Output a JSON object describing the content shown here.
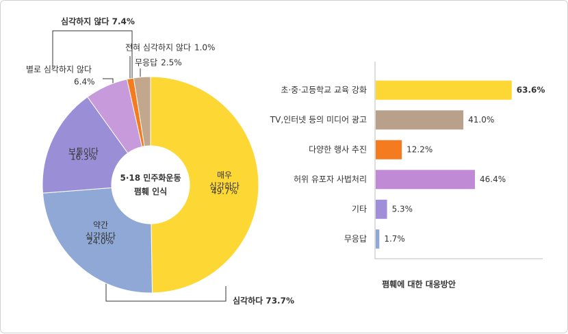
{
  "chart_data": [
    {
      "type": "pie",
      "title": "5·18 민주화운동\n폄훼 인식",
      "categories": [
        "매우\n심각하다",
        "약간\n심각하다",
        "보통이다",
        "별로 심각하지 않다",
        "전혀 심각하지 않다",
        "무응답"
      ],
      "values": [
        49.7,
        24.0,
        16.3,
        6.4,
        1.0,
        2.5
      ],
      "value_labels": [
        "49.7%",
        "24.0%",
        "16.3%",
        "6.4%",
        "1.0%",
        "2.5%"
      ],
      "colors": [
        "#fdd835",
        "#8fa8d6",
        "#9a8fd6",
        "#c79bdb",
        "#f47b20",
        "#c2a78c"
      ],
      "annotations": [
        "심각하지 않다 7.4%",
        "심각하다 73.7%"
      ]
    },
    {
      "type": "hbar",
      "title": "폄훼에 대한 대응방안",
      "categories": [
        "초·중·고등학교 교육 강화",
        "TV,인터넷 등의 미디어 광고",
        "다양한 행사 추진",
        "허위 유포자 사법처리",
        "기타",
        "무응답"
      ],
      "values": [
        63.6,
        41.0,
        12.2,
        46.4,
        5.3,
        1.7
      ],
      "value_labels": [
        "63.6%",
        "41.0%",
        "12.2%",
        "46.4%",
        "5.3%",
        "1.7%"
      ],
      "colors": [
        "#fdd835",
        "#b9a08a",
        "#f47b20",
        "#c08bd4",
        "#a08fd8",
        "#8fa8d6"
      ],
      "value_label_colors": [
        "#5a3a1e",
        "#b9a08a",
        "#f47b20",
        "#b77fcf",
        "#9a8fd6",
        "#7f9acd"
      ],
      "xlim": [
        0,
        80
      ]
    }
  ]
}
